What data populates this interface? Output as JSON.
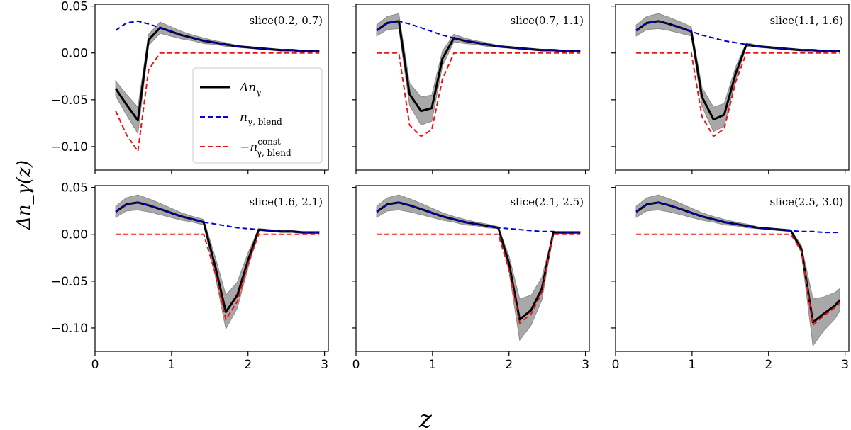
{
  "chart_data": {
    "type": "line",
    "ylabel": "Δn_γ(z)",
    "xlabel": "z",
    "xlim": [
      0,
      3.05
    ],
    "ylim": [
      -0.125,
      0.052
    ],
    "xticks": [
      0,
      1,
      2,
      3
    ],
    "yticks": [
      0.05,
      0.0,
      -0.05,
      -0.1
    ],
    "xtick_labels": [
      "0",
      "1",
      "2",
      "3"
    ],
    "ytick_labels": [
      "0.05",
      "0.00",
      "−0.05",
      "−0.10"
    ],
    "legend": {
      "placement": "center-right of first panel",
      "entries": [
        {
          "label": "Δn_γ",
          "main": "Δn",
          "sub": "γ",
          "color": "#000000",
          "style": "solid"
        },
        {
          "label": "n_γ,blend",
          "main": "n",
          "sub": "γ, blend",
          "color": "#0000dd",
          "style": "dashed"
        },
        {
          "label": "−n^const_γ,blend",
          "main": "−n",
          "sub": "γ, blend",
          "sup": "const",
          "color": "#ee1111",
          "style": "dashed"
        }
      ]
    },
    "colors": {
      "delta": "#000000",
      "blend": "#0000dd",
      "const": "#ee1111",
      "band": "#999999"
    },
    "z": [
      0.27,
      0.41,
      0.56,
      0.7,
      0.85,
      0.99,
      1.13,
      1.28,
      1.42,
      1.57,
      1.71,
      1.86,
      2.0,
      2.14,
      2.29,
      2.43,
      2.58,
      2.72,
      2.87,
      2.93
    ],
    "blend": [
      0.024,
      0.032,
      0.034,
      0.031,
      0.027,
      0.023,
      0.019,
      0.016,
      0.013,
      0.011,
      0.009,
      0.007,
      0.006,
      0.005,
      0.004,
      0.003,
      0.003,
      0.002,
      0.002,
      0.002
    ],
    "panels": [
      {
        "label": "slice(0.2, 0.7)",
        "delta": [
          -0.038,
          -0.055,
          -0.072,
          0.014,
          0.027,
          0.023,
          0.019,
          0.016,
          0.013,
          0.011,
          0.009,
          0.007,
          0.006,
          0.005,
          0.004,
          0.003,
          0.003,
          0.002,
          0.002,
          0.002
        ],
        "const": [
          -0.062,
          -0.087,
          -0.105,
          -0.018,
          0.0,
          0.0,
          0.0,
          0.0,
          0.0,
          0.0,
          0.0,
          0.0,
          0.0,
          0.0,
          0.0,
          0.0,
          0.0,
          0.0,
          0.0,
          0.0
        ],
        "band": [
          0.008,
          0.011,
          0.014,
          0.006,
          0.006,
          0.005,
          0.004,
          0.003,
          0.003,
          0.002,
          0.002,
          0.001,
          0.001,
          0.001,
          0.001,
          0.001,
          0.001,
          0.001,
          0.001,
          0.001
        ]
      },
      {
        "label": "slice(0.7, 1.1)",
        "delta": [
          0.024,
          0.032,
          0.034,
          -0.044,
          -0.062,
          -0.059,
          -0.006,
          0.016,
          0.013,
          0.011,
          0.009,
          0.007,
          0.006,
          0.005,
          0.004,
          0.003,
          0.003,
          0.002,
          0.002,
          0.002
        ],
        "const": [
          0.0,
          0.0,
          0.0,
          -0.077,
          -0.089,
          -0.082,
          -0.028,
          0.0,
          0.0,
          0.0,
          0.0,
          0.0,
          0.0,
          0.0,
          0.0,
          0.0,
          0.0,
          0.0,
          0.0,
          0.0
        ],
        "band": [
          0.006,
          0.007,
          0.008,
          0.012,
          0.015,
          0.014,
          0.008,
          0.004,
          0.003,
          0.002,
          0.002,
          0.001,
          0.001,
          0.001,
          0.001,
          0.001,
          0.001,
          0.001,
          0.001,
          0.001
        ]
      },
      {
        "label": "slice(1.1, 1.6)",
        "delta": [
          0.024,
          0.032,
          0.034,
          0.031,
          0.027,
          0.023,
          -0.047,
          -0.071,
          -0.066,
          -0.022,
          0.009,
          0.007,
          0.006,
          0.005,
          0.004,
          0.003,
          0.003,
          0.002,
          0.002,
          0.002
        ],
        "const": [
          0.0,
          0.0,
          0.0,
          0.0,
          0.0,
          0.0,
          -0.068,
          -0.089,
          -0.081,
          -0.031,
          0.0,
          0.0,
          0.0,
          0.0,
          0.0,
          0.0,
          0.0,
          0.0,
          0.0,
          0.0
        ],
        "band": [
          0.006,
          0.007,
          0.008,
          0.007,
          0.006,
          0.005,
          0.01,
          0.013,
          0.012,
          0.007,
          0.002,
          0.001,
          0.001,
          0.001,
          0.001,
          0.001,
          0.001,
          0.001,
          0.001,
          0.001
        ]
      },
      {
        "label": "slice(1.6, 2.1)",
        "delta": [
          0.024,
          0.032,
          0.034,
          0.031,
          0.027,
          0.023,
          0.019,
          0.016,
          0.013,
          -0.034,
          -0.083,
          -0.065,
          -0.028,
          0.005,
          0.004,
          0.003,
          0.003,
          0.002,
          0.002,
          0.002
        ],
        "const": [
          0.0,
          0.0,
          0.0,
          0.0,
          0.0,
          0.0,
          0.0,
          0.0,
          0.0,
          -0.041,
          -0.091,
          -0.072,
          -0.032,
          0.0,
          0.0,
          0.0,
          0.0,
          0.0,
          0.0,
          0.0
        ],
        "band": [
          0.006,
          0.007,
          0.008,
          0.007,
          0.006,
          0.005,
          0.004,
          0.003,
          0.003,
          0.01,
          0.018,
          0.014,
          0.008,
          0.001,
          0.001,
          0.001,
          0.001,
          0.001,
          0.001,
          0.001
        ]
      },
      {
        "label": "slice(2.1, 2.5)",
        "delta": [
          0.024,
          0.032,
          0.034,
          0.031,
          0.027,
          0.023,
          0.019,
          0.016,
          0.013,
          0.011,
          0.009,
          0.007,
          -0.031,
          -0.091,
          -0.081,
          -0.058,
          0.002,
          0.002,
          0.002,
          0.002
        ],
        "const": [
          0.0,
          0.0,
          0.0,
          0.0,
          0.0,
          0.0,
          0.0,
          0.0,
          0.0,
          0.0,
          0.0,
          0.0,
          -0.038,
          -0.095,
          -0.085,
          -0.062,
          0.0,
          0.0,
          0.0,
          0.0
        ],
        "band": [
          0.006,
          0.007,
          0.008,
          0.007,
          0.006,
          0.005,
          0.004,
          0.003,
          0.003,
          0.002,
          0.002,
          0.001,
          0.008,
          0.022,
          0.016,
          0.012,
          0.001,
          0.001,
          0.001,
          0.001
        ]
      },
      {
        "label": "slice(2.5, 3.0)",
        "delta": [
          0.024,
          0.032,
          0.034,
          0.031,
          0.027,
          0.023,
          0.019,
          0.016,
          0.013,
          0.011,
          0.009,
          0.007,
          0.006,
          0.005,
          0.004,
          -0.016,
          -0.094,
          -0.085,
          -0.076,
          -0.07
        ],
        "const": [
          0.0,
          0.0,
          0.0,
          0.0,
          0.0,
          0.0,
          0.0,
          0.0,
          0.0,
          0.0,
          0.0,
          0.0,
          0.0,
          0.0,
          0.0,
          -0.018,
          -0.097,
          -0.087,
          -0.078,
          -0.073
        ],
        "band": [
          0.006,
          0.007,
          0.008,
          0.007,
          0.006,
          0.005,
          0.004,
          0.003,
          0.003,
          0.002,
          0.002,
          0.001,
          0.001,
          0.001,
          0.001,
          0.004,
          0.025,
          0.018,
          0.014,
          0.012
        ]
      }
    ]
  }
}
